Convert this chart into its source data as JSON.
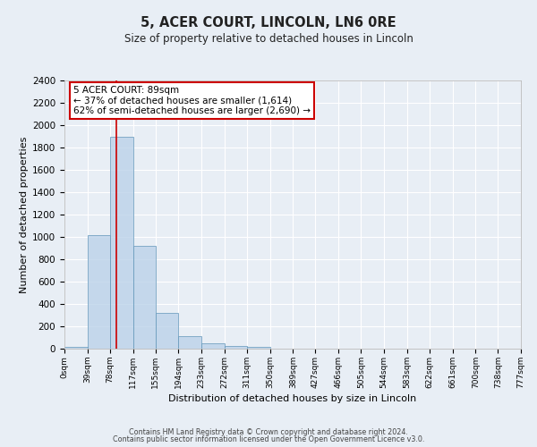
{
  "title": "5, ACER COURT, LINCOLN, LN6 0RE",
  "subtitle": "Size of property relative to detached houses in Lincoln",
  "xlabel": "Distribution of detached houses by size in Lincoln",
  "ylabel": "Number of detached properties",
  "bar_values": [
    20,
    1020,
    1900,
    920,
    320,
    110,
    50,
    25,
    20,
    0,
    0,
    0,
    0,
    0,
    0,
    0,
    0,
    0,
    0,
    0
  ],
  "bin_edges": [
    0,
    39,
    78,
    117,
    155,
    194,
    233,
    272,
    311,
    350,
    389,
    427,
    466,
    505,
    544,
    583,
    622,
    661,
    700,
    738,
    777
  ],
  "tick_labels": [
    "0sqm",
    "39sqm",
    "78sqm",
    "117sqm",
    "155sqm",
    "194sqm",
    "233sqm",
    "272sqm",
    "311sqm",
    "350sqm",
    "389sqm",
    "427sqm",
    "466sqm",
    "505sqm",
    "544sqm",
    "583sqm",
    "622sqm",
    "661sqm",
    "700sqm",
    "738sqm",
    "777sqm"
  ],
  "bar_color": "#b8d0e8",
  "bar_edge_color": "#6699bb",
  "bar_alpha": 0.75,
  "vline_x": 89,
  "vline_color": "#cc0000",
  "ylim": [
    0,
    2400
  ],
  "yticks": [
    0,
    200,
    400,
    600,
    800,
    1000,
    1200,
    1400,
    1600,
    1800,
    2000,
    2200,
    2400
  ],
  "annotation_title": "5 ACER COURT: 89sqm",
  "annotation_line1": "← 37% of detached houses are smaller (1,614)",
  "annotation_line2": "62% of semi-detached houses are larger (2,690) →",
  "bg_color": "#e8eef5",
  "grid_color": "#ffffff",
  "footer_line1": "Contains HM Land Registry data © Crown copyright and database right 2024.",
  "footer_line2": "Contains public sector information licensed under the Open Government Licence v3.0."
}
